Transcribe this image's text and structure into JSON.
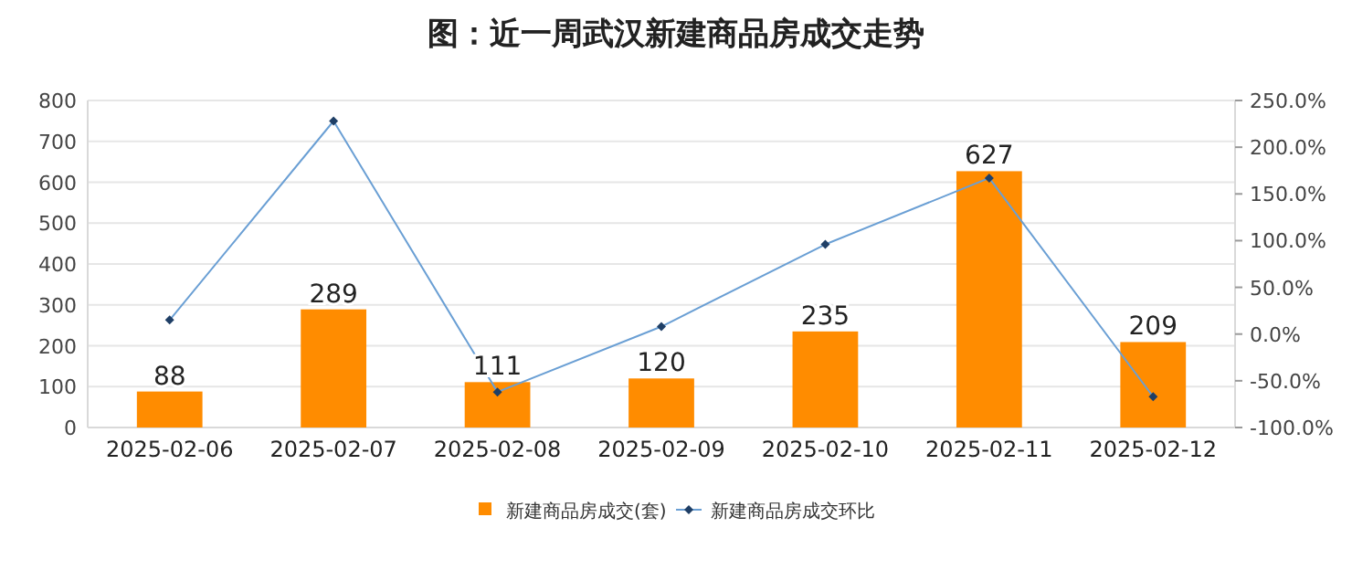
{
  "chart_data": {
    "type": "bar",
    "title": "图：近一周武汉新建商品房成交走势",
    "categories": [
      "2025-02-06",
      "2025-02-07",
      "2025-02-08",
      "2025-02-09",
      "2025-02-10",
      "2025-02-11",
      "2025-02-12"
    ],
    "series": [
      {
        "name": "新建商品房成交(套)",
        "color": "#ff8c00",
        "values": [
          88,
          289,
          111,
          120,
          235,
          627,
          209
        ],
        "value_labels": [
          "88",
          "289",
          "111",
          "120",
          "235",
          "627",
          "209"
        ]
      },
      {
        "name": "新建商品房成交环比",
        "type": "line",
        "axis": "y2",
        "color": "#6a9fd4",
        "marker": "diamond",
        "values": [
          15,
          228,
          -62,
          8,
          96,
          167,
          -67
        ]
      }
    ],
    "ylim": [
      0,
      800
    ],
    "yticks": [
      0,
      100,
      200,
      300,
      400,
      500,
      600,
      700,
      800
    ],
    "y2lim": [
      -100,
      250
    ],
    "y2ticks": [
      {
        "value": -100,
        "label": "-100.0%"
      },
      {
        "value": -50,
        "label": "-50.0%"
      },
      {
        "value": 0,
        "label": "0.0%"
      },
      {
        "value": 50,
        "label": "50.0%"
      },
      {
        "value": 100,
        "label": "100.0%"
      },
      {
        "value": 150,
        "label": "150.0%"
      },
      {
        "value": 200,
        "label": "200.0%"
      },
      {
        "value": 250,
        "label": "250.0%"
      }
    ],
    "grid": "y",
    "legend": "bottom"
  }
}
